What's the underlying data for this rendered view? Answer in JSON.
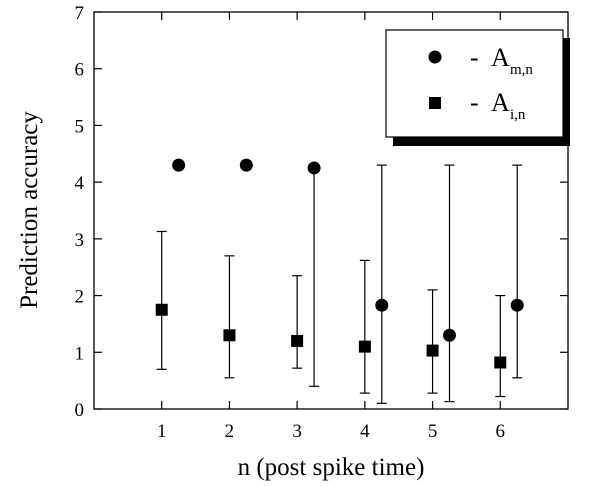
{
  "chart_data": {
    "type": "scatter",
    "title": "",
    "xlabel": "n (post spike time)",
    "ylabel": "Prediction accuracy",
    "xlim": [
      0,
      7
    ],
    "ylim": [
      0,
      7
    ],
    "x_ticks": [
      1,
      2,
      3,
      4,
      5,
      6
    ],
    "y_ticks": [
      0,
      1,
      2,
      3,
      4,
      5,
      6,
      7
    ],
    "grid": false,
    "legend_position": "top-right",
    "series": [
      {
        "name_dash": "-",
        "name_main": "A",
        "name_sub": "m,n",
        "marker": "circle",
        "color": "#000000",
        "points": [
          {
            "x": 1.25,
            "y": 4.3
          },
          {
            "x": 2.25,
            "y": 4.3
          },
          {
            "x": 3.25,
            "y": 4.25,
            "err_low": 0.4,
            "err_high": 4.25
          },
          {
            "x": 4.25,
            "y": 1.83,
            "err_low": 0.1,
            "err_high": 4.3
          },
          {
            "x": 5.25,
            "y": 1.3,
            "err_low": 0.13,
            "err_high": 4.3
          },
          {
            "x": 6.25,
            "y": 1.83,
            "err_low": 0.55,
            "err_high": 4.3
          }
        ]
      },
      {
        "name_dash": "-",
        "name_main": "A",
        "name_sub": "i,n",
        "marker": "square",
        "color": "#000000",
        "points": [
          {
            "x": 1,
            "y": 1.75,
            "err_low": 0.7,
            "err_high": 3.13
          },
          {
            "x": 2,
            "y": 1.3,
            "err_low": 0.55,
            "err_high": 2.7
          },
          {
            "x": 3,
            "y": 1.2,
            "err_low": 0.72,
            "err_high": 2.35
          },
          {
            "x": 4,
            "y": 1.1,
            "err_low": 0.28,
            "err_high": 2.62
          },
          {
            "x": 5,
            "y": 1.03,
            "err_low": 0.28,
            "err_high": 2.1
          },
          {
            "x": 6,
            "y": 0.82,
            "err_low": 0.22,
            "err_high": 2.0
          }
        ]
      }
    ]
  }
}
